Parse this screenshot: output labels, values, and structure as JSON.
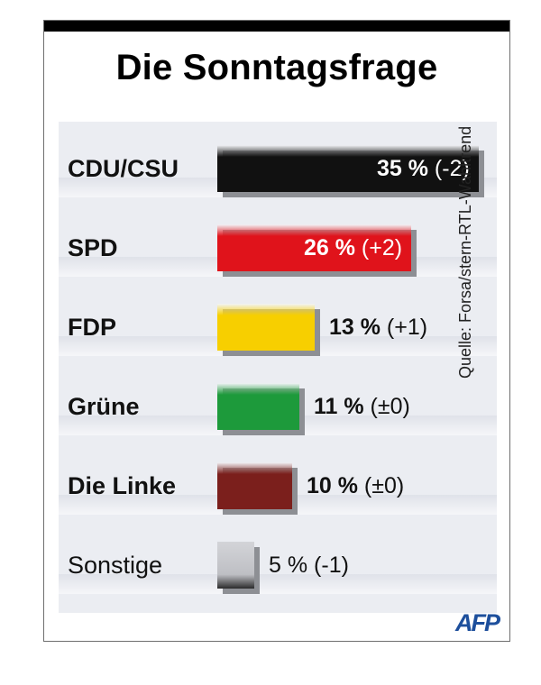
{
  "chart_data": {
    "type": "bar",
    "title": "Die Sonntagsfrage",
    "categories": [
      "CDU/CSU",
      "SPD",
      "FDP",
      "Grüne",
      "Die Linke",
      "Sonstige"
    ],
    "values": [
      35,
      26,
      13,
      11,
      10,
      5
    ],
    "changes": [
      "(-2)",
      "(+2)",
      "(+1)",
      "(±0)",
      "(±0)",
      "(-1)"
    ],
    "value_labels": [
      "35 %",
      "26 %",
      "13 %",
      "11 %",
      "10 %",
      "5 %"
    ],
    "colors": [
      "#111111",
      "#e0131b",
      "#f7cf00",
      "#1d9a3b",
      "#7b1f1c",
      "#c2c3c7"
    ],
    "unit": "%",
    "xlim": [
      0,
      35
    ],
    "orientation": "horizontal"
  },
  "source": "Quelle: Forsa/stern-RTL-Wahltrend",
  "logo": "AFP"
}
